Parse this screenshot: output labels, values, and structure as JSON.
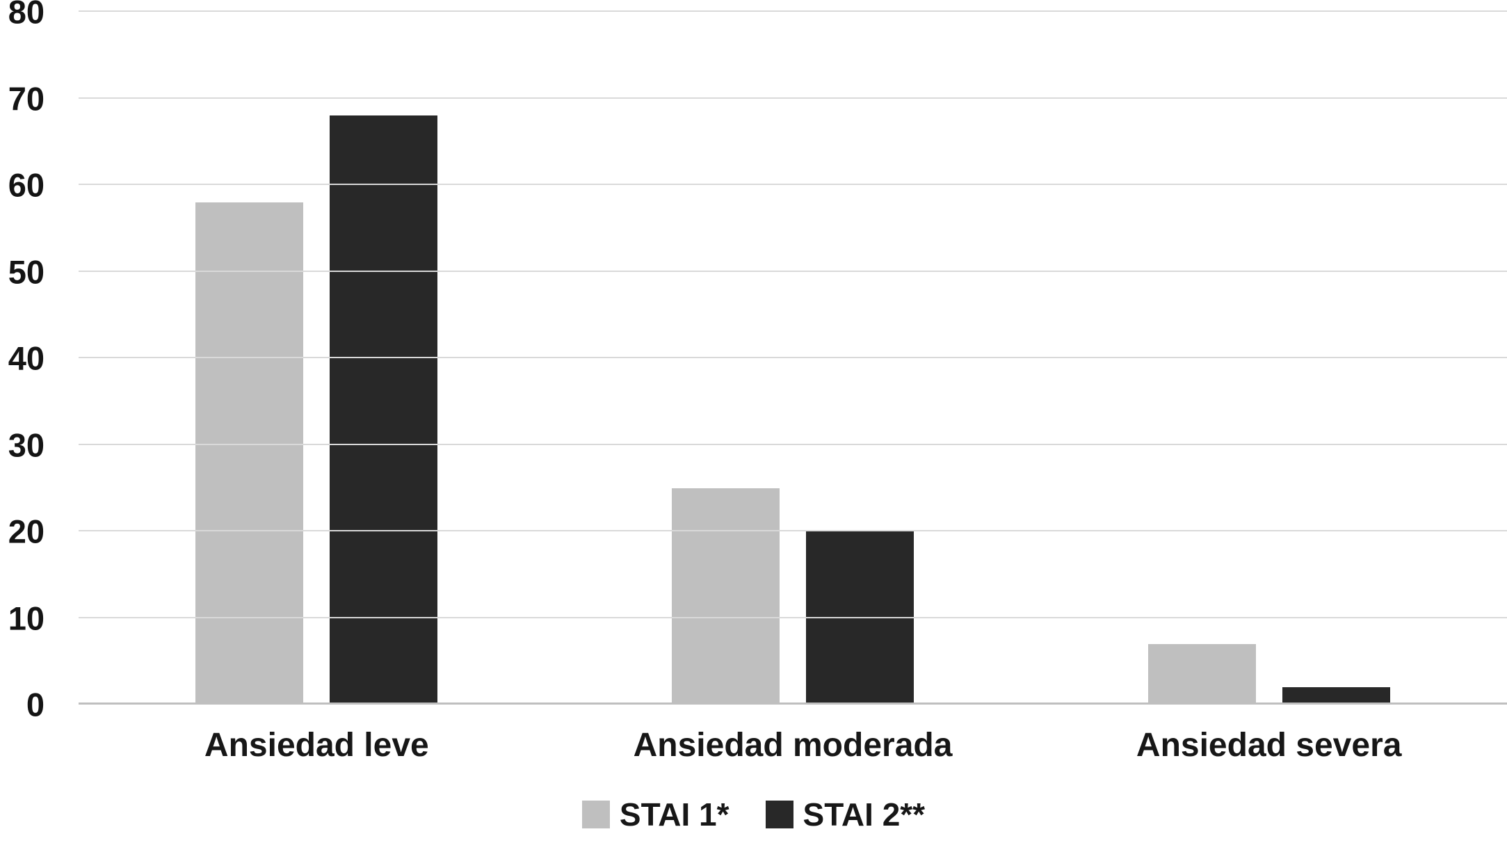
{
  "chart_data": {
    "type": "bar",
    "title": "",
    "xlabel": "",
    "ylabel": "",
    "categories": [
      "Ansiedad leve",
      "Ansiedad moderada",
      "Ansiedad severa"
    ],
    "series": [
      {
        "name": "STAI 1*",
        "color": "#bfbfbf",
        "values": [
          58,
          25,
          7
        ]
      },
      {
        "name": "STAI 2**",
        "color": "#282828",
        "values": [
          68,
          20,
          2
        ]
      }
    ],
    "ylim": [
      0,
      80
    ],
    "yticks": [
      0,
      10,
      20,
      30,
      40,
      50,
      60,
      70,
      80
    ],
    "grid": true,
    "gridline_color": "#d9d9d9",
    "baseline_color": "#bfbfbf",
    "legend_position": "bottom",
    "background": "#ffffff",
    "text_color": "#171717"
  }
}
